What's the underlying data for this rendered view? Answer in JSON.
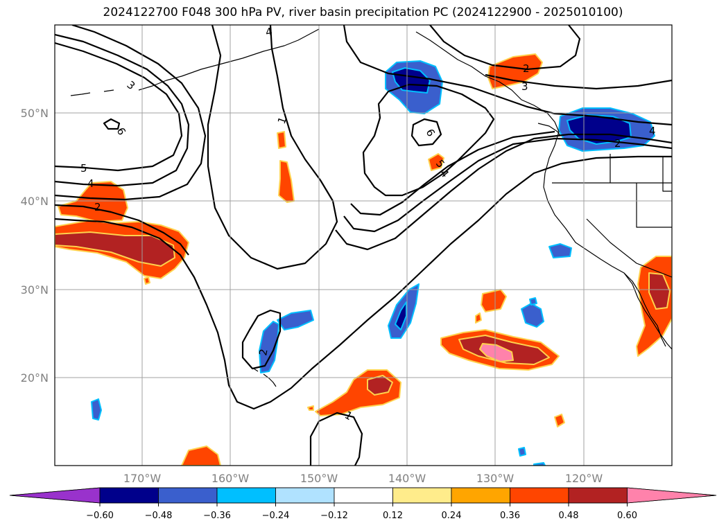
{
  "title": "2024122700 F048 300 hPa PV, river basin precipitation PC (2024122900 - 2025010100)",
  "colors": {
    "grid": "#a0a0a0",
    "contour": "#000000",
    "coast": "#000000",
    "levels": [
      "#9932cc",
      "#00008b",
      "#3a5fcd",
      "#00bfff",
      "#b0e2ff",
      "#ffffff",
      "#ffec8b",
      "#ffa500",
      "#ff4500",
      "#b22222",
      "#ff82ab"
    ]
  },
  "map": {
    "projection": "PlateCarree",
    "lon_range": [
      180,
      110
    ],
    "lat_range": [
      10,
      60
    ],
    "lon_ticks": [
      {
        "value": 170,
        "label": "170°W"
      },
      {
        "value": 160,
        "label": "160°W"
      },
      {
        "value": 150,
        "label": "150°W"
      },
      {
        "value": 140,
        "label": "140°W"
      },
      {
        "value": 130,
        "label": "130°W"
      },
      {
        "value": 120,
        "label": "120°W"
      }
    ],
    "lat_ticks": [
      {
        "value": 50,
        "label": "50°N"
      },
      {
        "value": 40,
        "label": "40°N"
      },
      {
        "value": 30,
        "label": "30°N"
      },
      {
        "value": 20,
        "label": "20°N"
      }
    ],
    "pv_labels": [
      "3",
      "1",
      "6",
      "5",
      "4",
      "2",
      "6",
      "5",
      "4",
      "2",
      "3",
      "4",
      "2",
      "2",
      "1",
      "4"
    ]
  },
  "colorbar": {
    "ticks": [
      "−0.60",
      "−0.48",
      "−0.36",
      "−0.24",
      "−0.12",
      "0.12",
      "0.24",
      "0.36",
      "0.48",
      "0.60"
    ]
  }
}
